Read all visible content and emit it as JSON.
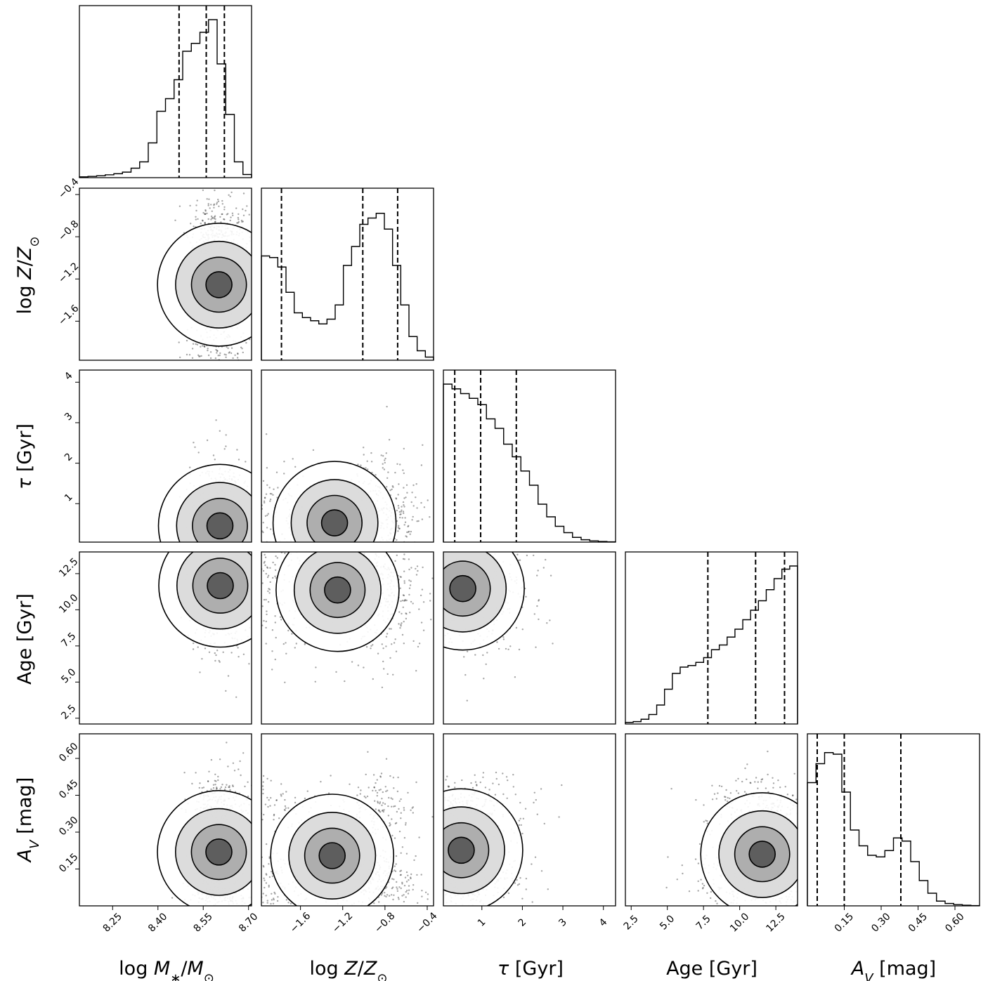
{
  "chart_data": {
    "type": "corner",
    "parameters": [
      {
        "key": "logM",
        "label": "log M*/M⊙",
        "range": [
          8.14,
          8.71
        ],
        "ticks": [
          8.25,
          8.4,
          8.55,
          8.7
        ],
        "tick_labels": [
          "8.25",
          "8.40",
          "8.55",
          "8.70"
        ]
      },
      {
        "key": "logZ",
        "label": "log Z/Z⊙",
        "range": [
          -1.97,
          -0.34
        ],
        "ticks": [
          -1.6,
          -1.2,
          -0.8,
          -0.4
        ],
        "tick_labels": [
          "−1.6",
          "−1.2",
          "−0.8",
          "−0.4"
        ]
      },
      {
        "key": "tau",
        "label": "τ [Gyr]",
        "range": [
          0.05,
          4.3
        ],
        "ticks": [
          1,
          2,
          3,
          4
        ],
        "tick_labels": [
          "1",
          "2",
          "3",
          "4"
        ]
      },
      {
        "key": "age",
        "label": "Age [Gyr]",
        "range": [
          2.1,
          14.0
        ],
        "ticks": [
          2.5,
          5.0,
          7.5,
          10.0,
          12.5
        ],
        "tick_labels": [
          "2.5",
          "5.0",
          "7.5",
          "10.0",
          "12.5"
        ]
      },
      {
        "key": "av",
        "label": "A_V [mag]",
        "range": [
          0.0,
          0.7
        ],
        "ticks": [
          0.15,
          0.3,
          0.45,
          0.6
        ],
        "tick_labels": [
          "0.15",
          "0.30",
          "0.45",
          "0.60"
        ]
      }
    ],
    "marginals": [
      {
        "param": "logM",
        "quantiles": [
          8.47,
          8.56,
          8.62
        ],
        "bins": [
          8.14,
          8.71
        ],
        "counts": [
          0.005,
          0.008,
          0.012,
          0.018,
          0.025,
          0.035,
          0.06,
          0.1,
          0.22,
          0.42,
          0.5,
          0.62,
          0.8,
          0.85,
          0.92,
          1.0,
          0.72,
          0.4,
          0.1,
          0.02
        ]
      },
      {
        "param": "logZ",
        "quantiles": [
          -1.78,
          -1.01,
          -0.68
        ],
        "bins": [
          -1.97,
          -0.34
        ],
        "counts": [
          0.66,
          0.65,
          0.59,
          0.43,
          0.3,
          0.27,
          0.25,
          0.23,
          0.26,
          0.35,
          0.6,
          0.72,
          0.86,
          0.9,
          0.93,
          0.83,
          0.6,
          0.35,
          0.15,
          0.06,
          0.02
        ]
      },
      {
        "param": "tau",
        "quantiles": [
          0.33,
          0.97,
          1.85
        ],
        "bins": [
          0.05,
          4.3
        ],
        "counts": [
          1.0,
          0.97,
          0.94,
          0.91,
          0.87,
          0.78,
          0.72,
          0.62,
          0.54,
          0.45,
          0.36,
          0.24,
          0.16,
          0.1,
          0.06,
          0.03,
          0.015,
          0.008,
          0.004,
          0.002
        ]
      },
      {
        "param": "age",
        "quantiles": [
          7.8,
          11.1,
          13.1
        ],
        "bins": [
          2.1,
          14.0
        ],
        "counts": [
          0.01,
          0.015,
          0.03,
          0.06,
          0.12,
          0.22,
          0.32,
          0.36,
          0.37,
          0.39,
          0.42,
          0.47,
          0.5,
          0.55,
          0.6,
          0.66,
          0.72,
          0.78,
          0.85,
          0.92,
          0.98,
          1.0
        ]
      },
      {
        "param": "av",
        "quantiles": [
          0.04,
          0.15,
          0.38
        ],
        "bins": [
          0.0,
          0.7
        ],
        "counts": [
          0.78,
          0.9,
          0.97,
          0.96,
          0.72,
          0.48,
          0.38,
          0.32,
          0.31,
          0.35,
          0.43,
          0.41,
          0.28,
          0.16,
          0.08,
          0.03,
          0.015,
          0.008,
          0.004,
          0.002
        ]
      }
    ],
    "density": {
      "logM": [
        {
          "m": 8.58,
          "s": 0.04,
          "w": 0.6
        },
        {
          "m": 8.64,
          "s": 0.04,
          "w": 0.4
        }
      ],
      "logZ": [
        {
          "m": -0.85,
          "s": 0.2,
          "w": 0.6
        },
        {
          "m": -1.9,
          "s": 0.3,
          "w": 0.4
        }
      ],
      "tau": [
        {
          "m": 0.5,
          "s": 0.8,
          "w": 1.0
        }
      ],
      "age": [
        {
          "m": 11.5,
          "s": 2.2,
          "w": 1.0
        }
      ],
      "av": [
        {
          "m": 0.1,
          "s": 0.08,
          "w": 0.6
        },
        {
          "m": 0.4,
          "s": 0.07,
          "w": 0.4
        }
      ]
    },
    "grid": false
  }
}
